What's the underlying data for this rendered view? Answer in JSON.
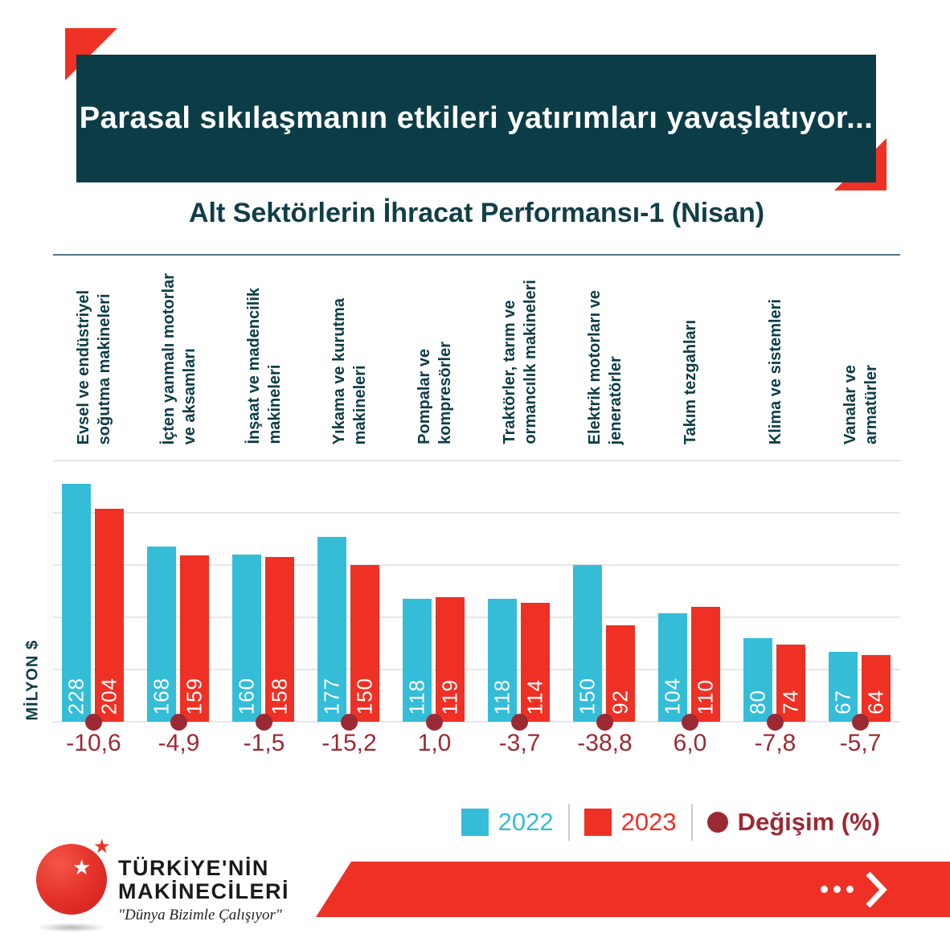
{
  "colors": {
    "cyan": "#35bdd8",
    "red": "#ee3124",
    "maroon": "#9c2a34",
    "teal_dark": "#0c3d46",
    "text_teal": "#113e47",
    "grid": "#e5e7e9",
    "rule": "#54777f"
  },
  "header": {
    "title": "Parasal sıkılaşmanın etkileri yatırımları yavaşlatıyor..."
  },
  "chart": {
    "title": "Alt Sektörlerin İhracat Performansı-1 (Nisan)",
    "y_axis_label": "MİLYON $",
    "legend": [
      {
        "label": "2022",
        "swatch": "square",
        "color": "#35bdd8"
      },
      {
        "label": "2023",
        "swatch": "square",
        "color": "#ee3124"
      },
      {
        "label": "Değişim (%)",
        "swatch": "dot",
        "color": "#9c2a34"
      }
    ]
  },
  "chart_data": {
    "type": "bar",
    "title": "Alt Sektörlerin İhracat Performansı-1 (Nisan)",
    "ylabel": "MİLYON $",
    "ylim": [
      0,
      250
    ],
    "gridline_step": 50,
    "grid": true,
    "legend_position": "bottom-right",
    "categories": [
      [
        "Evsel ve endüstriyel",
        "soğutma makineleri"
      ],
      [
        "İçten yanmalı motorlar",
        "ve aksamları"
      ],
      [
        "İnşaat ve madencilik",
        "makineleri"
      ],
      [
        "Yıkama ve kurutma",
        "makineleri"
      ],
      [
        "Pompalar ve",
        "kompresörler"
      ],
      [
        "Traktörler, tarım ve",
        "ormancılık makineleri"
      ],
      [
        "Elektrik motorları ve",
        "jeneratörler"
      ],
      [
        "Takım tezgahları"
      ],
      [
        "Klima ve sistemleri"
      ],
      [
        "Vanalar ve",
        "armatürler"
      ]
    ],
    "series": [
      {
        "name": "2022",
        "color": "#35bdd8",
        "values": [
          228,
          168,
          160,
          177,
          118,
          118,
          150,
          104,
          80,
          67
        ]
      },
      {
        "name": "2023",
        "color": "#ee3124",
        "values": [
          204,
          159,
          158,
          150,
          119,
          114,
          92,
          110,
          74,
          64
        ]
      }
    ],
    "change_series": {
      "name": "Değişim (%)",
      "color": "#9c2a34",
      "values": [
        -10.6,
        -4.9,
        -1.5,
        -15.2,
        1.0,
        -3.7,
        -38.8,
        6.0,
        -7.8,
        -5.7
      ],
      "labels": [
        "-10,6",
        "-4,9",
        "-1,5",
        "-15,2",
        "1,0",
        "-3,7",
        "-38,8",
        "6,0",
        "-7,8",
        "-5,7"
      ]
    }
  },
  "footer": {
    "brand_line1": "TÜRKİYE'NİN",
    "brand_line2": "MAKİNECİLERİ",
    "tagline": "\"Dünya Bizimle Çalışıyor\"",
    "star": "★"
  }
}
